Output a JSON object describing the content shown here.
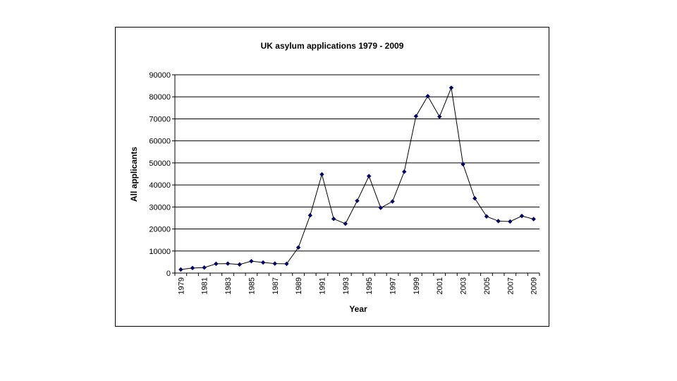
{
  "chart_data": {
    "type": "line",
    "title": "UK asylum applications 1979 - 2009",
    "xlabel": "Year",
    "ylabel": "All applicants",
    "ylim": [
      0,
      90000
    ],
    "yticks": [
      0,
      10000,
      20000,
      30000,
      40000,
      50000,
      60000,
      70000,
      80000,
      90000
    ],
    "xtick_labels": [
      "1979",
      "1981",
      "1983",
      "1985",
      "1987",
      "1989",
      "1991",
      "1993",
      "1995",
      "1997",
      "1999",
      "2001",
      "2003",
      "2005",
      "2007",
      "2009"
    ],
    "grid": true,
    "legend": false,
    "line_color": "#000000",
    "marker_color": "#000066",
    "x": [
      1979,
      1980,
      1981,
      1982,
      1983,
      1984,
      1985,
      1986,
      1987,
      1988,
      1989,
      1990,
      1991,
      1992,
      1993,
      1994,
      1995,
      1996,
      1997,
      1998,
      1999,
      2000,
      2001,
      2002,
      2003,
      2004,
      2005,
      2006,
      2007,
      2008,
      2009
    ],
    "series": [
      {
        "values": [
          1600,
          2300,
          2500,
          4200,
          4300,
          3900,
          5400,
          4800,
          4300,
          4200,
          11600,
          26200,
          44800,
          24600,
          22400,
          32800,
          44000,
          29600,
          32500,
          46000,
          71200,
          80300,
          71000,
          84100,
          49400,
          33900,
          25700,
          23600,
          23400,
          25900,
          24500
        ]
      }
    ]
  }
}
